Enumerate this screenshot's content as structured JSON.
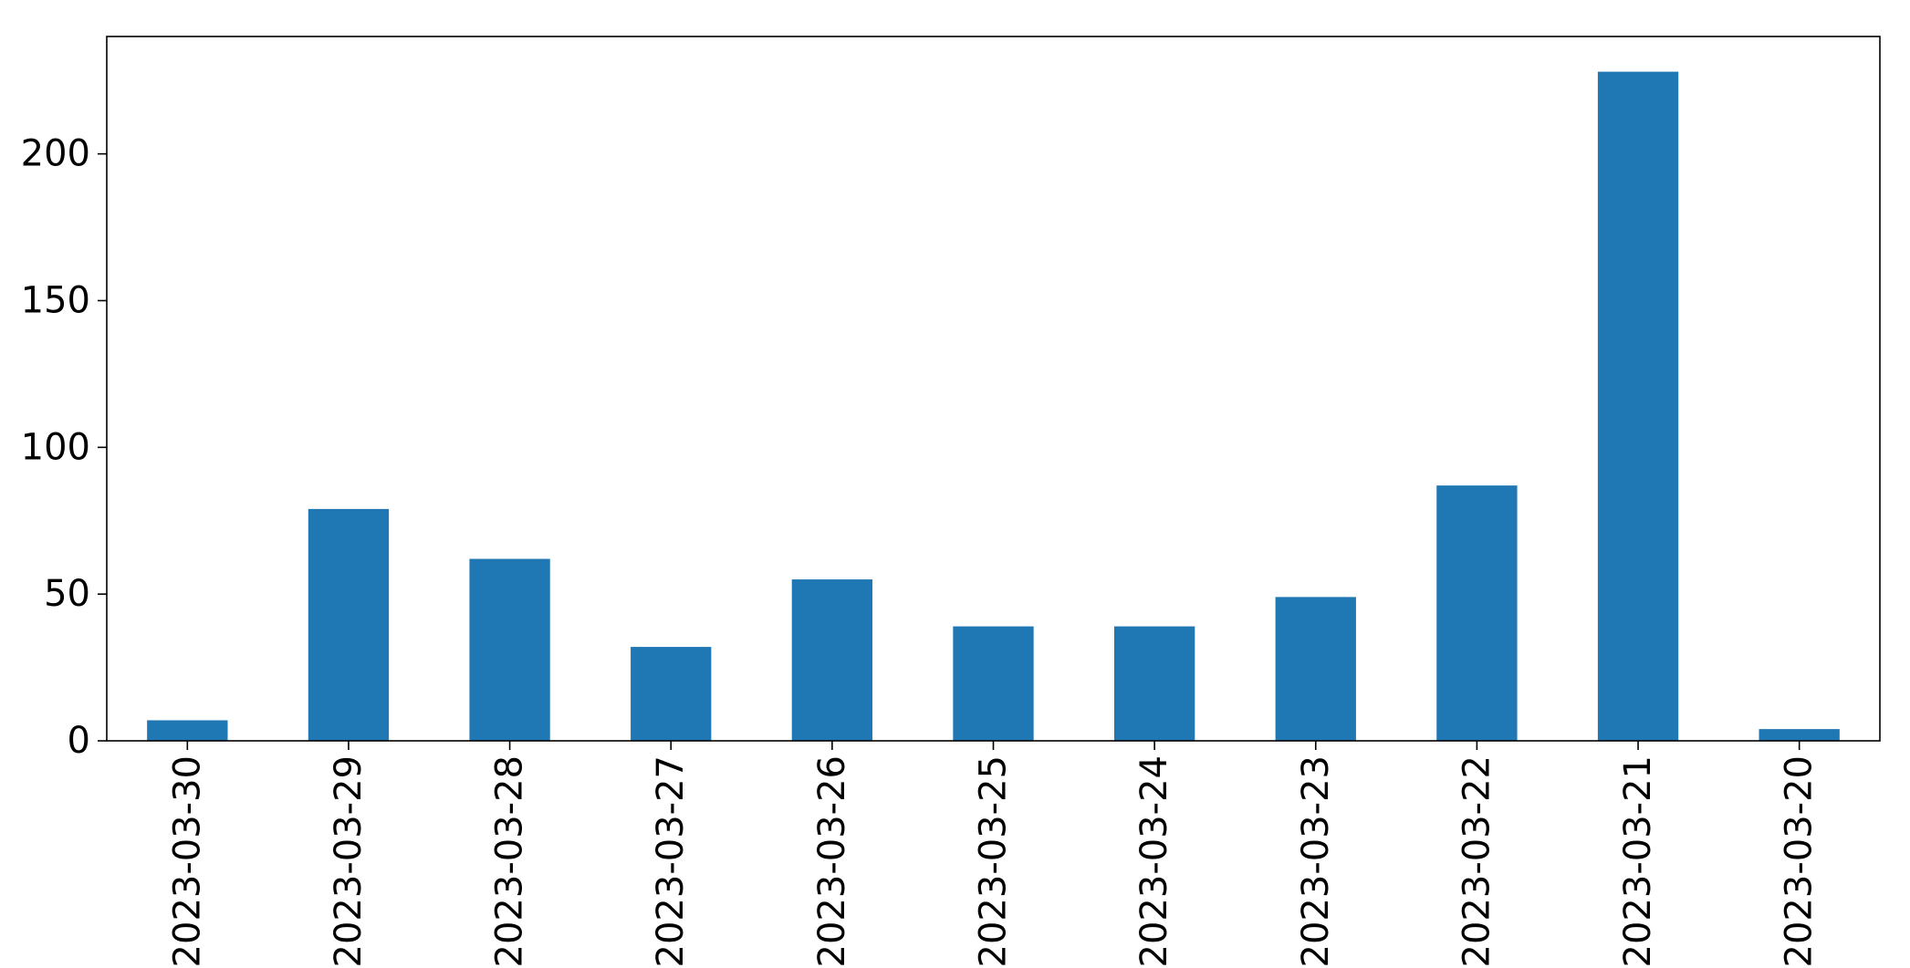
{
  "chart_data": {
    "type": "bar",
    "title": "",
    "xlabel": "",
    "ylabel": "",
    "categories": [
      "2023-03-30",
      "2023-03-29",
      "2023-03-28",
      "2023-03-27",
      "2023-03-26",
      "2023-03-25",
      "2023-03-24",
      "2023-03-23",
      "2023-03-22",
      "2023-03-21",
      "2023-03-20"
    ],
    "values": [
      7,
      79,
      62,
      32,
      55,
      39,
      39,
      49,
      87,
      228,
      4
    ],
    "ylim": [
      0,
      240
    ],
    "yticks": [
      0,
      50,
      100,
      150,
      200
    ],
    "bar_color": "#1f77b4",
    "grid": false,
    "legend": "none"
  }
}
